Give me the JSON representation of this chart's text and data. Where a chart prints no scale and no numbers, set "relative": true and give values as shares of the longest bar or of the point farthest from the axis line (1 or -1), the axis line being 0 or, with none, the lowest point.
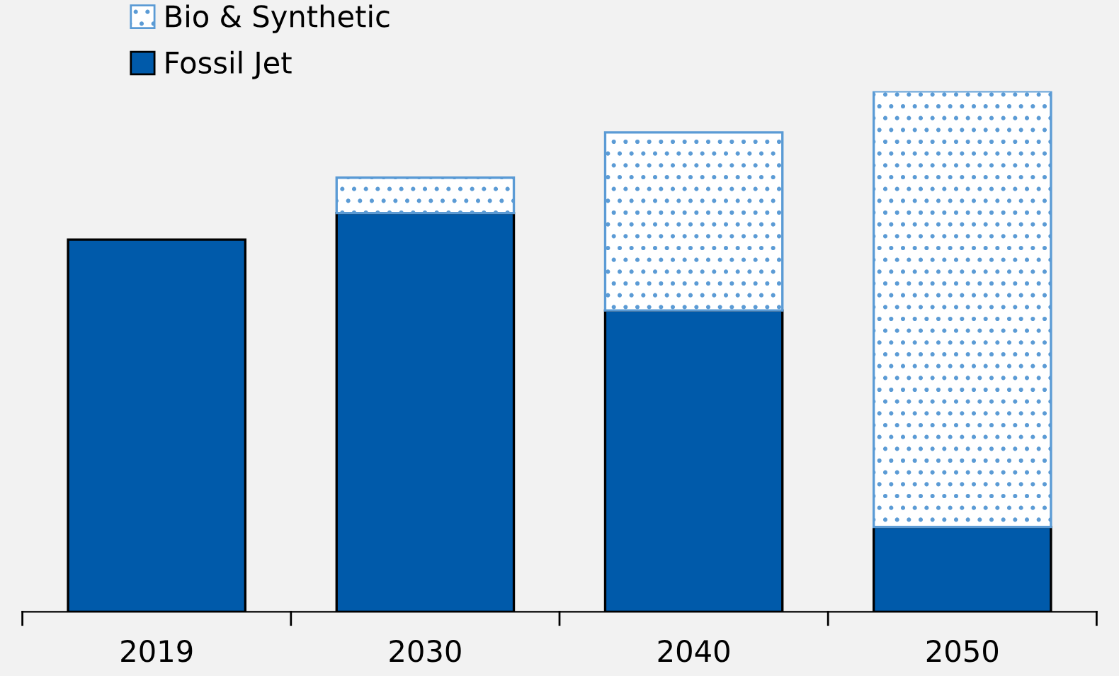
{
  "chart_data": {
    "type": "bar",
    "stacked": true,
    "relative": true,
    "categories": [
      "2019",
      "2030",
      "2040",
      "2050"
    ],
    "series": [
      {
        "name": "Fossil Jet",
        "color": "#005aaa",
        "values": [
          0.715,
          0.766,
          0.579,
          0.163
        ]
      },
      {
        "name": "Bio & Synthetic",
        "color": "#5b9bd5",
        "values": [
          null,
          0.068,
          0.342,
          0.837
        ]
      }
    ],
    "legend": "top left",
    "grid": false
  }
}
